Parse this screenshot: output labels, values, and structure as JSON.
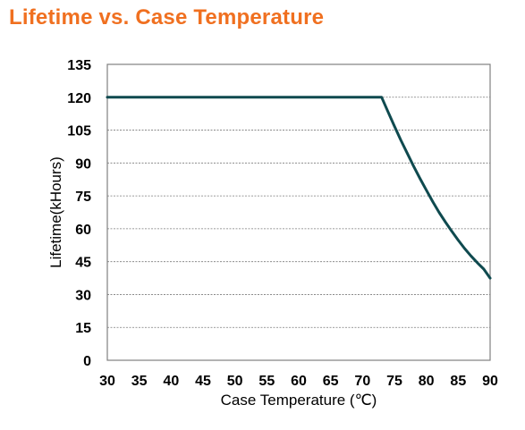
{
  "title": "Lifetime vs. Case Temperature",
  "chart_data": {
    "type": "line",
    "title": "Lifetime vs. Case Temperature",
    "xlabel": "Case Temperature (℃)",
    "ylabel": "Lifetime(kHours)",
    "xlim": [
      30,
      90
    ],
    "ylim": [
      0,
      135
    ],
    "xticks": [
      "30",
      "35",
      "40",
      "45",
      "50",
      "55",
      "60",
      "65",
      "70",
      "75",
      "80",
      "85",
      "90"
    ],
    "yticks": [
      "0",
      "15",
      "30",
      "45",
      "60",
      "75",
      "90",
      "105",
      "120",
      "135"
    ],
    "grid": "horizontal-dashed",
    "legend": "none",
    "series": [
      {
        "color": "#0f4a4f",
        "x": [
          30,
          73,
          74,
          75,
          76,
          77,
          78,
          79,
          80,
          81,
          82,
          83,
          84,
          85,
          86,
          87,
          88,
          89,
          90
        ],
        "y": [
          120,
          120,
          113.3,
          106.8,
          100.5,
          94.5,
          88.6,
          83.0,
          77.6,
          72.4,
          67.5,
          63.0,
          58.8,
          54.8,
          51.0,
          47.6,
          44.5,
          41.6,
          37.5
        ]
      }
    ]
  }
}
